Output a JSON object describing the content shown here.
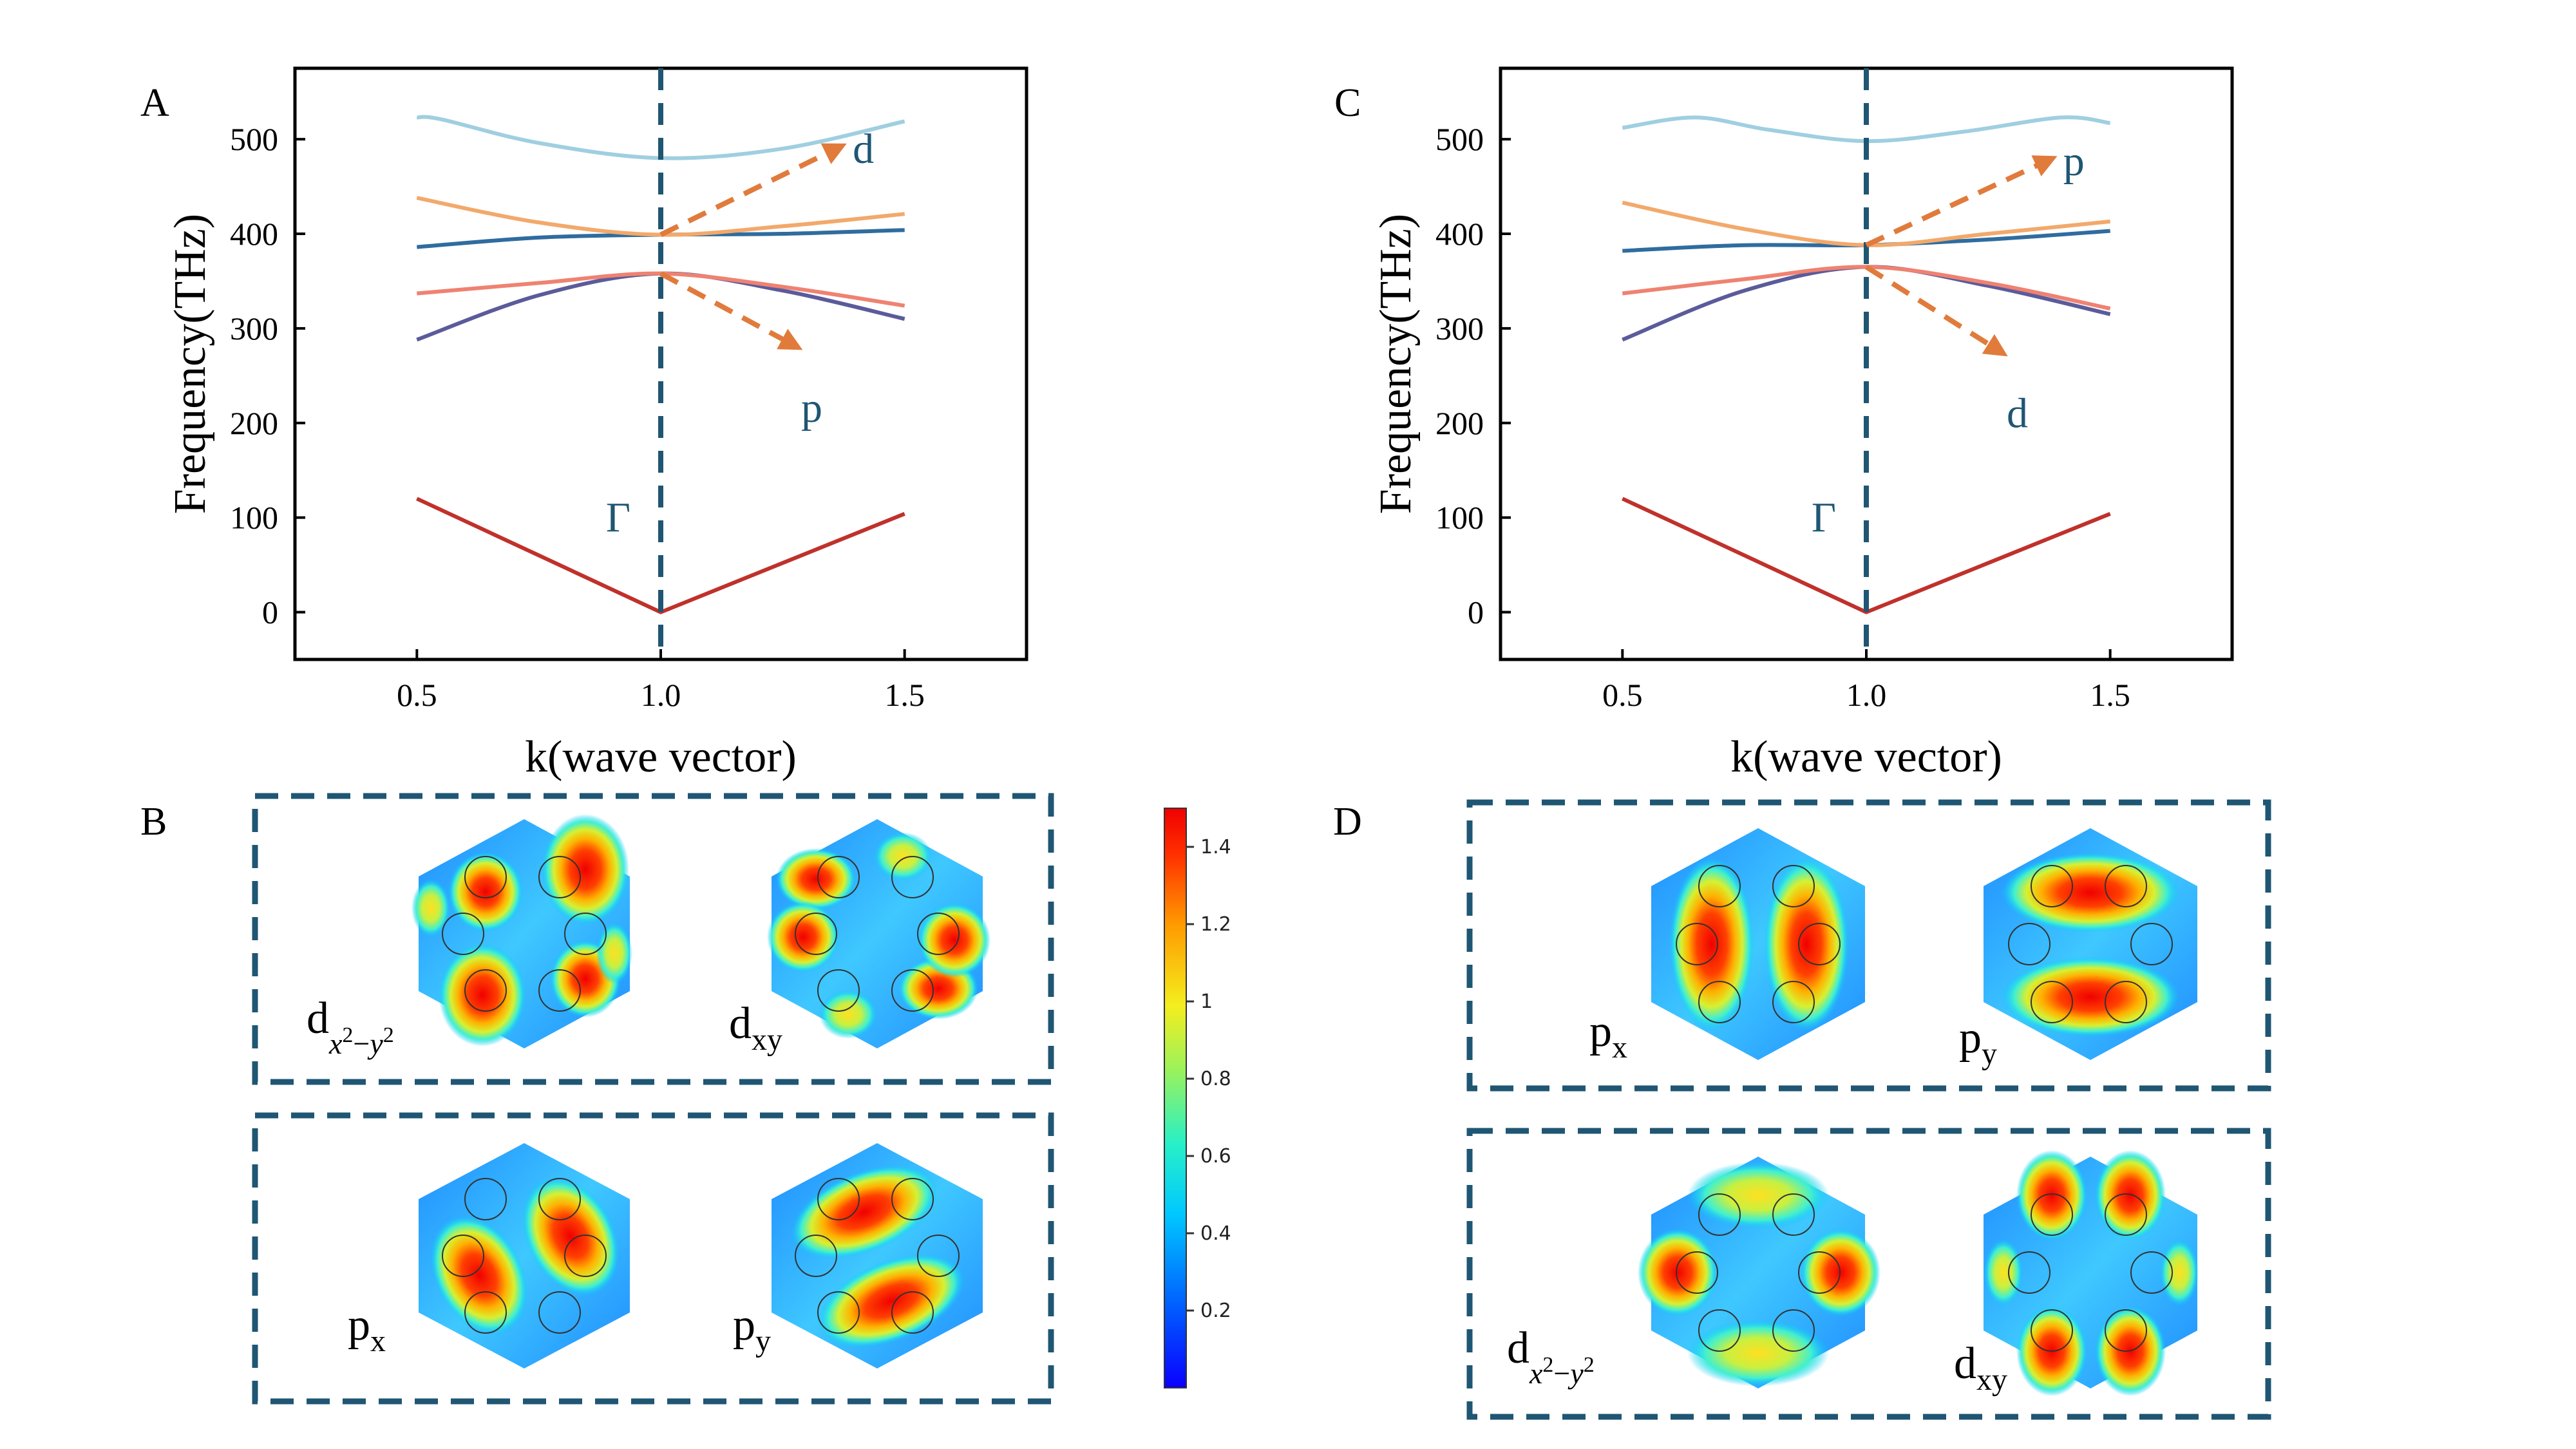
{
  "panel_labels": {
    "a": "A",
    "b": "B",
    "c": "C",
    "d": "D"
  },
  "colors": {
    "axis": "#000000",
    "dashed_line": "#1f5673",
    "arrow": "#e07b3c",
    "gamma_label": "#1f5673",
    "band1": "#c0312b",
    "band2": "#5b5b9b",
    "band3": "#ef8271",
    "band4": "#2f6c9f",
    "band5": "#f2a96b",
    "band6": "#9fcfe0"
  },
  "chart_data": [
    {
      "panel": "A",
      "type": "line",
      "xlabel": "k(wave vector)",
      "ylabel": "Frequency(THz)",
      "xlim": [
        0.25,
        1.75
      ],
      "ylim": [
        -50,
        575
      ],
      "xticks": [
        "0.5",
        "1.0",
        "1.5"
      ],
      "yticks": [
        "0",
        "100",
        "200",
        "300",
        "400",
        "500"
      ],
      "grid": false,
      "vertical_dashed_x": 1.0,
      "gamma_label": "Γ",
      "series": [
        {
          "x": [
            0.5,
            0.75,
            1.0,
            1.25,
            1.5
          ],
          "y": [
            120,
            60,
            0,
            52,
            104
          ]
        },
        {
          "x": [
            0.5,
            0.75,
            1.0,
            1.25,
            1.5
          ],
          "y": [
            288,
            335,
            358,
            340,
            310
          ]
        },
        {
          "x": [
            0.5,
            0.75,
            1.0,
            1.25,
            1.5
          ],
          "y": [
            337,
            348,
            358,
            344,
            324
          ]
        },
        {
          "x": [
            0.5,
            0.75,
            1.0,
            1.25,
            1.5
          ],
          "y": [
            386,
            396,
            399,
            400,
            404
          ]
        },
        {
          "x": [
            0.5,
            0.75,
            1.0,
            1.25,
            1.5
          ],
          "y": [
            438,
            412,
            399,
            408,
            421
          ]
        },
        {
          "x": [
            0.5,
            0.55,
            0.75,
            1.0,
            1.25,
            1.5
          ],
          "y": [
            523,
            521,
            496,
            480,
            490,
            519
          ]
        }
      ],
      "annotations": [
        {
          "text": "d",
          "from": [
            1.0,
            399
          ],
          "to": [
            1.36,
            490
          ]
        },
        {
          "text": "p",
          "from": [
            1.0,
            358
          ],
          "to": [
            1.27,
            283
          ]
        }
      ]
    },
    {
      "panel": "C",
      "type": "line",
      "xlabel": "k(wave vector)",
      "ylabel": "Frequency(THz)",
      "xlim": [
        0.25,
        1.75
      ],
      "ylim": [
        -50,
        575
      ],
      "xticks": [
        "0.5",
        "1.0",
        "1.5"
      ],
      "yticks": [
        "0",
        "100",
        "200",
        "300",
        "400",
        "500"
      ],
      "grid": false,
      "vertical_dashed_x": 1.0,
      "gamma_label": "Γ",
      "series": [
        {
          "x": [
            0.5,
            0.75,
            1.0,
            1.25,
            1.5
          ],
          "y": [
            120,
            60,
            0,
            52,
            104
          ]
        },
        {
          "x": [
            0.5,
            0.75,
            1.0,
            1.25,
            1.5
          ],
          "y": [
            288,
            340,
            365,
            345,
            315
          ]
        },
        {
          "x": [
            0.5,
            0.75,
            1.0,
            1.25,
            1.5
          ],
          "y": [
            337,
            352,
            365,
            348,
            321
          ]
        },
        {
          "x": [
            0.5,
            0.75,
            1.0,
            1.25,
            1.5
          ],
          "y": [
            382,
            388,
            388,
            394,
            403
          ]
        },
        {
          "x": [
            0.5,
            0.75,
            1.0,
            1.25,
            1.5
          ],
          "y": [
            433,
            405,
            388,
            400,
            413
          ]
        },
        {
          "x": [
            0.5,
            0.65,
            0.8,
            1.0,
            1.2,
            1.4,
            1.5
          ],
          "y": [
            512,
            523,
            510,
            498,
            508,
            523,
            517
          ]
        }
      ],
      "annotations": [
        {
          "text": "p",
          "from": [
            1.0,
            388
          ],
          "to": [
            1.37,
            477
          ]
        },
        {
          "text": "d",
          "from": [
            1.0,
            365
          ],
          "to": [
            1.27,
            277
          ]
        }
      ]
    }
  ],
  "colorbar": {
    "ticks": [
      "0.2",
      "0.4",
      "0.6",
      "0.8",
      "1",
      "1.2",
      "1.4"
    ],
    "tick_values": [
      0.2,
      0.4,
      0.6,
      0.8,
      1.0,
      1.2,
      1.4
    ],
    "min": 0.0,
    "max": 1.5
  },
  "modes": {
    "b_top_left": "d_{x²−y²}",
    "b_top_right": "dxy",
    "b_bottom_left": "px",
    "b_bottom_right": "py",
    "d_top_left": "px",
    "d_top_right": "py",
    "d_bottom_left": "d_{x²−y²}",
    "d_bottom_right": "dxy"
  },
  "mode_labels": {
    "d_main": "d",
    "p_main": "p",
    "sub_x2y2_a": "x",
    "sup_2": "2",
    "minus": "−",
    "sub_x2y2_b": "y",
    "sub_xy": "xy",
    "sub_x": "x",
    "sub_y": "y"
  }
}
